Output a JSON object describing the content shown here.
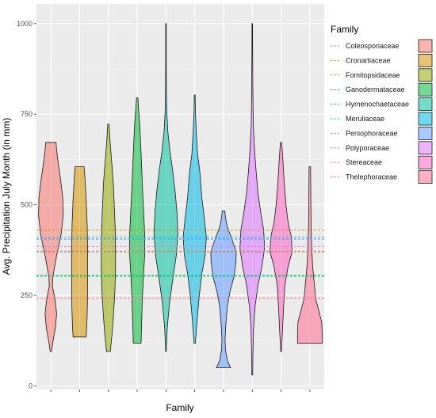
{
  "chart_data": {
    "type": "violin",
    "xlabel": "Family",
    "ylabel": "Avg. Precipitation July Month (in mm)",
    "ylim": [
      -10,
      1020
    ],
    "yticks": [
      0,
      250,
      500,
      750,
      1000
    ],
    "x_tick_labels_visible": false,
    "grid": true,
    "legend": {
      "title": "Family",
      "position": "right"
    },
    "series": [
      {
        "name": "Coleosporiaceae",
        "color": "#F8766D",
        "mean_line": 242,
        "profile": [
          [
            95,
            0.05
          ],
          [
            120,
            0.15
          ],
          [
            160,
            0.35
          ],
          [
            200,
            0.45
          ],
          [
            240,
            0.32
          ],
          [
            275,
            0.12
          ],
          [
            300,
            0.15
          ],
          [
            360,
            0.45
          ],
          [
            420,
            0.8
          ],
          [
            470,
            0.95
          ],
          [
            520,
            0.92
          ],
          [
            570,
            0.75
          ],
          [
            620,
            0.55
          ],
          [
            650,
            0.45
          ],
          [
            672,
            0.4
          ]
        ]
      },
      {
        "name": "Cronartiaceae",
        "color": "#D39200",
        "mean_line": 430,
        "profile": [
          [
            135,
            0.5
          ],
          [
            160,
            0.55
          ],
          [
            220,
            0.6
          ],
          [
            300,
            0.62
          ],
          [
            380,
            0.62
          ],
          [
            450,
            0.58
          ],
          [
            520,
            0.5
          ],
          [
            570,
            0.42
          ],
          [
            605,
            0.35
          ]
        ]
      },
      {
        "name": "Fomitopsidaceae",
        "color": "#93AA00",
        "mean_line": 372,
        "profile": [
          [
            95,
            0.15
          ],
          [
            150,
            0.3
          ],
          [
            200,
            0.4
          ],
          [
            260,
            0.5
          ],
          [
            320,
            0.55
          ],
          [
            380,
            0.55
          ],
          [
            440,
            0.52
          ],
          [
            500,
            0.45
          ],
          [
            560,
            0.38
          ],
          [
            620,
            0.25
          ],
          [
            680,
            0.12
          ],
          [
            722,
            0.05
          ]
        ]
      },
      {
        "name": "Ganodermataceae",
        "color": "#00BA38",
        "mean_line": 303,
        "profile": [
          [
            118,
            0.3
          ],
          [
            180,
            0.35
          ],
          [
            240,
            0.4
          ],
          [
            300,
            0.48
          ],
          [
            360,
            0.58
          ],
          [
            420,
            0.58
          ],
          [
            480,
            0.5
          ],
          [
            540,
            0.42
          ],
          [
            600,
            0.35
          ],
          [
            660,
            0.28
          ],
          [
            720,
            0.2
          ],
          [
            760,
            0.12
          ],
          [
            795,
            0.05
          ]
        ]
      },
      {
        "name": "Hymenochaetaceae",
        "color": "#00C19F",
        "mean_line": 305,
        "profile": [
          [
            95,
            0.02
          ],
          [
            160,
            0.1
          ],
          [
            230,
            0.28
          ],
          [
            300,
            0.55
          ],
          [
            360,
            0.8
          ],
          [
            420,
            0.92
          ],
          [
            480,
            0.85
          ],
          [
            540,
            0.7
          ],
          [
            600,
            0.5
          ],
          [
            650,
            0.3
          ],
          [
            700,
            0.15
          ],
          [
            760,
            0.06
          ],
          [
            830,
            0.03
          ],
          [
            900,
            0.02
          ],
          [
            1000,
            0.02
          ]
        ]
      },
      {
        "name": "Meruliaceae",
        "color": "#00B9E3",
        "mean_line": 410,
        "profile": [
          [
            118,
            0.05
          ],
          [
            180,
            0.18
          ],
          [
            250,
            0.35
          ],
          [
            310,
            0.55
          ],
          [
            360,
            0.8
          ],
          [
            410,
            0.9
          ],
          [
            460,
            0.75
          ],
          [
            520,
            0.55
          ],
          [
            590,
            0.4
          ],
          [
            640,
            0.22
          ],
          [
            700,
            0.12
          ],
          [
            760,
            0.05
          ],
          [
            803,
            0.03
          ]
        ]
      },
      {
        "name": "Peniophoraceae",
        "color": "#619CFF",
        "mean_line": 405,
        "profile": [
          [
            50,
            0.55
          ],
          [
            70,
            0.3
          ],
          [
            100,
            0.15
          ],
          [
            130,
            0.12
          ],
          [
            170,
            0.18
          ],
          [
            220,
            0.3
          ],
          [
            260,
            0.5
          ],
          [
            300,
            0.8
          ],
          [
            340,
            0.96
          ],
          [
            370,
            0.98
          ],
          [
            410,
            0.6
          ],
          [
            440,
            0.28
          ],
          [
            465,
            0.15
          ],
          [
            483,
            0.1
          ]
        ]
      },
      {
        "name": "Polyporaceae",
        "color": "#DB72FB",
        "mean_line": 385,
        "profile": [
          [
            30,
            0.03
          ],
          [
            90,
            0.05
          ],
          [
            160,
            0.1
          ],
          [
            220,
            0.22
          ],
          [
            280,
            0.45
          ],
          [
            330,
            0.75
          ],
          [
            380,
            0.95
          ],
          [
            430,
            0.88
          ],
          [
            480,
            0.65
          ],
          [
            530,
            0.45
          ],
          [
            590,
            0.3
          ],
          [
            650,
            0.18
          ],
          [
            720,
            0.08
          ],
          [
            800,
            0.05
          ],
          [
            900,
            0.03
          ],
          [
            1000,
            0.02
          ]
        ]
      },
      {
        "name": "Stereaceae",
        "color": "#FF61C3",
        "mean_line": 370,
        "profile": [
          [
            95,
            0.03
          ],
          [
            160,
            0.12
          ],
          [
            220,
            0.2
          ],
          [
            280,
            0.3
          ],
          [
            330,
            0.55
          ],
          [
            370,
            0.85
          ],
          [
            410,
            0.8
          ],
          [
            450,
            0.55
          ],
          [
            500,
            0.38
          ],
          [
            560,
            0.25
          ],
          [
            620,
            0.15
          ],
          [
            672,
            0.05
          ]
        ]
      },
      {
        "name": "Thelephoraceae",
        "color": "#FF6C91",
        "mean_line": 242,
        "profile": [
          [
            118,
            0.95
          ],
          [
            150,
            0.95
          ],
          [
            175,
            0.92
          ],
          [
            200,
            0.75
          ],
          [
            240,
            0.45
          ],
          [
            280,
            0.35
          ],
          [
            330,
            0.22
          ],
          [
            380,
            0.15
          ],
          [
            440,
            0.1
          ],
          [
            500,
            0.08
          ],
          [
            560,
            0.07
          ],
          [
            605,
            0.06
          ]
        ]
      }
    ]
  }
}
